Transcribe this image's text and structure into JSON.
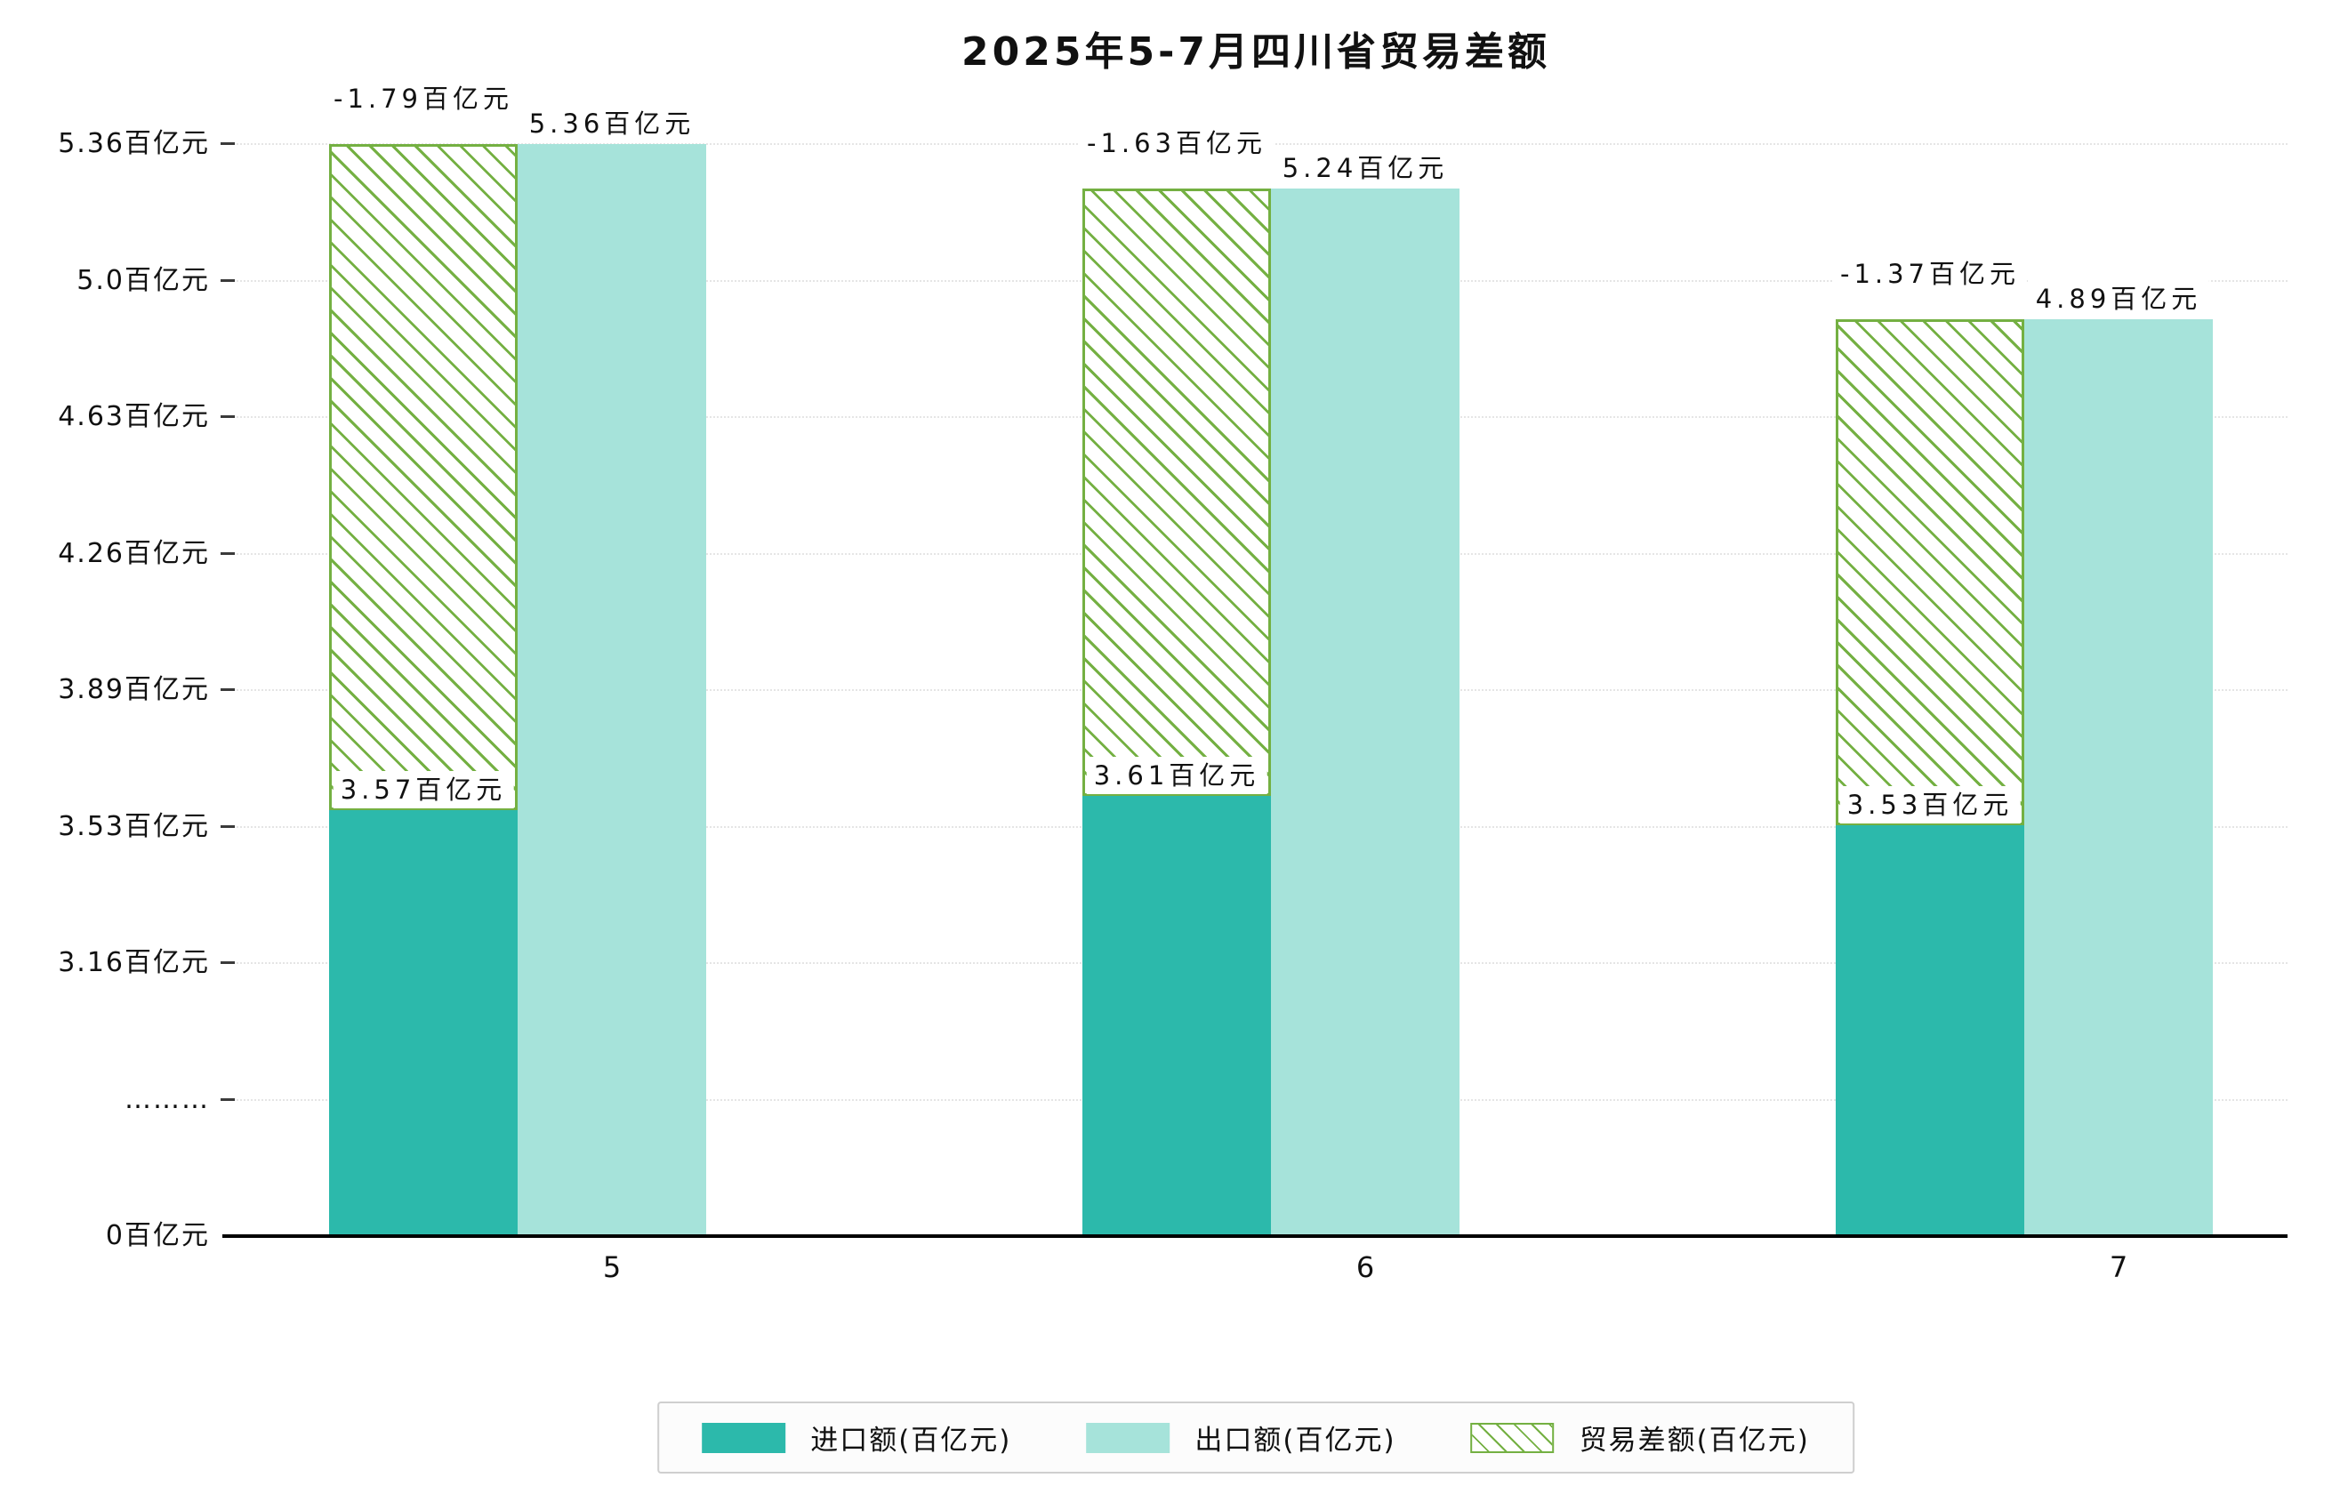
{
  "chart_data": {
    "type": "bar",
    "title": "2025年5-7月四川省贸易差额",
    "categories": [
      "5",
      "6",
      "7"
    ],
    "series": [
      {
        "name": "进口额(百亿元)",
        "values": [
          3.57,
          3.61,
          3.53
        ],
        "labels": [
          "3.57百亿元",
          "3.61百亿元",
          "3.53百亿元"
        ],
        "color": "#2cb9ab",
        "style": "solid"
      },
      {
        "name": "出口额(百亿元)",
        "values": [
          5.36,
          5.24,
          4.89
        ],
        "labels": [
          "5.36百亿元",
          "5.24百亿元",
          "4.89百亿元"
        ],
        "color": "#a6e3da",
        "style": "solid"
      },
      {
        "name": "贸易差额(百亿元)",
        "values": [
          -1.79,
          -1.63,
          -1.37
        ],
        "labels": [
          "-1.79百亿元",
          "-1.63百亿元",
          "-1.37百亿元"
        ],
        "color": "#74b042",
        "style": "hatched"
      }
    ],
    "xlabel": "",
    "ylabel": "",
    "y_ticks": [
      "0百亿元",
      "………",
      "3.16百亿元",
      "3.53百亿元",
      "3.89百亿元",
      "4.26百亿元",
      "4.63百亿元",
      "5.0百亿元",
      "5.36百亿元"
    ],
    "y_axis_break": true,
    "ylim": [
      0,
      5.36
    ],
    "grid": true,
    "grid_color": "#e5e5e5",
    "axis_color": "#000000",
    "legend_position": "bottom"
  }
}
